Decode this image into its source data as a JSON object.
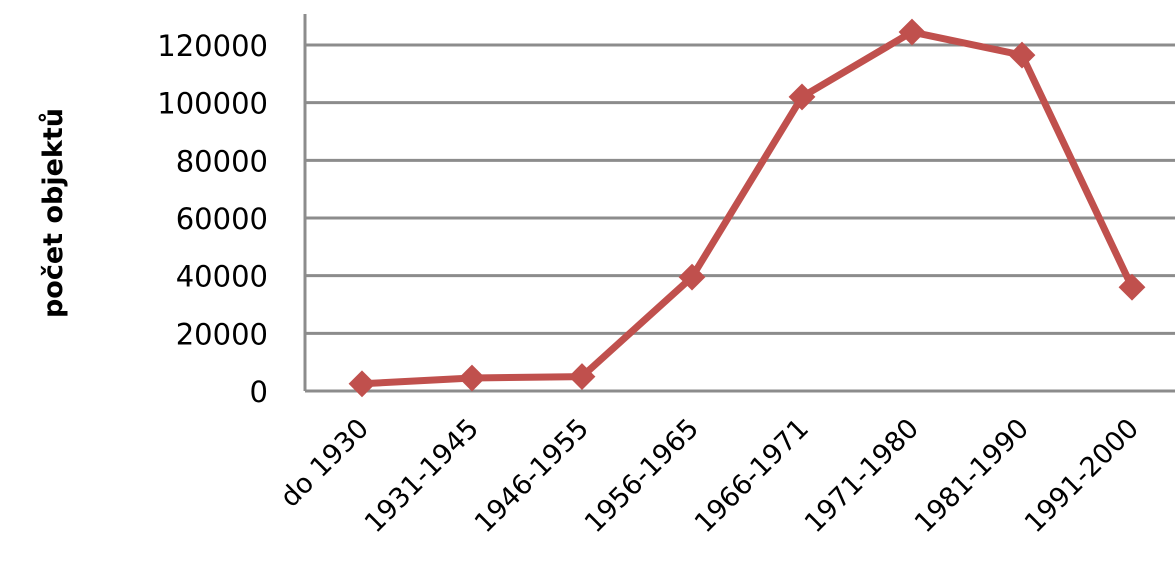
{
  "chart_data": {
    "type": "line",
    "title": "",
    "xlabel": "",
    "ylabel": "počet objektů",
    "categories": [
      "do 1930",
      "1931-1945",
      "1946-1955",
      "1956-1965",
      "1966-1971",
      "1971-1980",
      "1981-1990",
      "1991-2000"
    ],
    "series": [
      {
        "values": [
          2500,
          4500,
          5000,
          39500,
          102000,
          124500,
          116500,
          36000
        ]
      }
    ],
    "ylim": [
      0,
      120000
    ],
    "yticks": [
      "0",
      "20000",
      "40000",
      "60000",
      "80000",
      "100000",
      "120000"
    ],
    "grid": true,
    "line_color": "#c0504d"
  }
}
